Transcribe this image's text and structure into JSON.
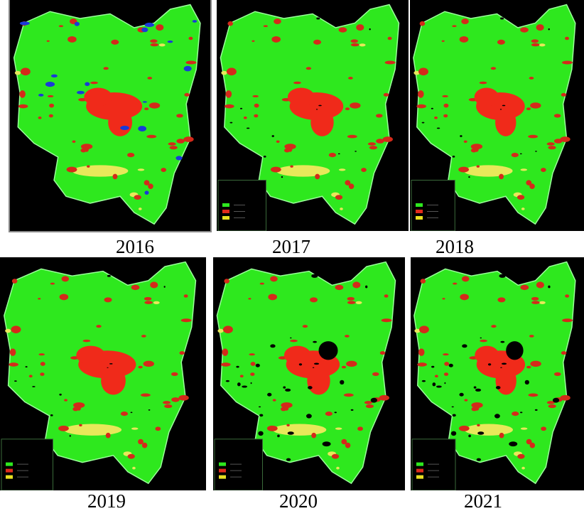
{
  "figures": [
    {
      "caption": "2016"
    },
    {
      "caption": "2017"
    },
    {
      "caption": "2018"
    },
    {
      "caption": "2019"
    },
    {
      "caption": "2020"
    },
    {
      "caption": "2021"
    }
  ]
}
